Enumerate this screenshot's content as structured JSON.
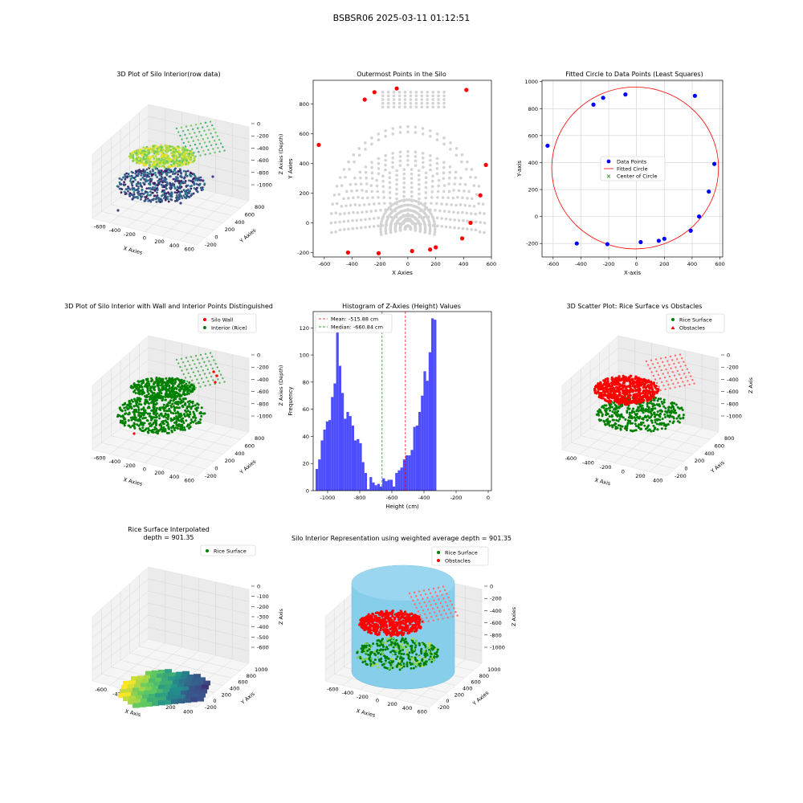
{
  "suptitle": "BSBSR06 2025-03-11 01:12:51",
  "colors": {
    "point_gray": "#d3d3d3",
    "red": "#ff0000",
    "blue": "#0000ff",
    "green": "#008000",
    "hist_blue": "#4d4dff",
    "sky": "#87ceeb",
    "pane": "#f2f2f2",
    "grid": "#d0d0d0"
  },
  "chart_data": [
    {
      "id": "p1",
      "type": "scatter3d",
      "title": "3D Plot of Silo Interior(row data)",
      "xlabel": "X Axies",
      "ylabel": "Y Axies",
      "zlabel": "Z Axies (Depth)",
      "xticks": [
        "-600",
        "-400",
        "-200",
        "0",
        "200",
        "400",
        "600"
      ],
      "yticks": [
        "-200",
        "0",
        "200",
        "400",
        "600",
        "800"
      ],
      "zticks": [
        "0",
        "-200",
        "-400",
        "-600",
        "-800",
        "-1000"
      ],
      "colormap": "viridis"
    },
    {
      "id": "p2",
      "type": "scatter",
      "title": "Outermost Points in the Silo",
      "xlabel": "X Axies",
      "ylabel": "Y Axies",
      "xlim": [
        -680,
        600
      ],
      "ylim": [
        -230,
        960
      ],
      "xticks": [
        -600,
        -400,
        -200,
        0,
        200,
        400,
        600
      ],
      "yticks": [
        -200,
        0,
        200,
        400,
        600,
        800
      ],
      "outer_points": [
        [
          -640,
          525
        ],
        [
          -430,
          -200
        ],
        [
          -310,
          830
        ],
        [
          -240,
          880
        ],
        [
          -210,
          -205
        ],
        [
          -80,
          905
        ],
        [
          30,
          -190
        ],
        [
          160,
          -180
        ],
        [
          200,
          -165
        ],
        [
          390,
          -105
        ],
        [
          420,
          895
        ],
        [
          450,
          0
        ],
        [
          520,
          185
        ],
        [
          560,
          390
        ]
      ],
      "outer_color": "#ff0000",
      "inner_color": "#d3d3d3"
    },
    {
      "id": "p3",
      "type": "scatter+circle",
      "title": "Fitted Circle to Data Points (Least Squares)",
      "xlabel": "X-axis",
      "ylabel": "Y-axis",
      "xlim": [
        -680,
        620
      ],
      "ylim": [
        -300,
        1010
      ],
      "xticks": [
        -600,
        -400,
        -200,
        0,
        200,
        400,
        600
      ],
      "yticks": [
        -200,
        0,
        200,
        400,
        600,
        800,
        1000
      ],
      "points": [
        [
          -640,
          525
        ],
        [
          -430,
          -200
        ],
        [
          -310,
          830
        ],
        [
          -240,
          880
        ],
        [
          -210,
          -205
        ],
        [
          -80,
          905
        ],
        [
          30,
          -190
        ],
        [
          160,
          -180
        ],
        [
          200,
          -165
        ],
        [
          390,
          -105
        ],
        [
          420,
          895
        ],
        [
          450,
          0
        ],
        [
          520,
          185
        ],
        [
          560,
          390
        ]
      ],
      "circle": {
        "cx": -10,
        "cy": 360,
        "r": 600
      },
      "legend": [
        "Data Points",
        "Fitted Circle",
        "Center of Circle"
      ]
    },
    {
      "id": "p4",
      "type": "scatter3d",
      "title": "3D Plot of Silo Interior with Wall and Interior Points Distinguished",
      "xlabel": "X Axies",
      "ylabel": "Y Axies",
      "zlabel": "Z Axies (Depth)",
      "xticks": [
        "-600",
        "-400",
        "-200",
        "0",
        "200",
        "400",
        "600"
      ],
      "yticks": [
        "-200",
        "0",
        "200",
        "400",
        "600",
        "800"
      ],
      "zticks": [
        "0",
        "-200",
        "-400",
        "-600",
        "-800",
        "-1000"
      ],
      "legend": [
        "Silo Wall",
        "Interior (Rice)"
      ]
    },
    {
      "id": "p5",
      "type": "bar",
      "title": "Histogram of Z-Axies (Height) Values",
      "xlabel": "Height (cm)",
      "ylabel": "Frequency",
      "xlim": [
        -1090,
        20
      ],
      "ylim": [
        0,
        132
      ],
      "xticks": [
        -1000,
        -800,
        -600,
        -400,
        -200,
        0
      ],
      "yticks": [
        0,
        20,
        40,
        60,
        80,
        100,
        120
      ],
      "bin_start": -1075,
      "bin_width": 16,
      "values": [
        16,
        23,
        37,
        45,
        51,
        52,
        69,
        79,
        117,
        92,
        72,
        53,
        58,
        55,
        48,
        37,
        38,
        35,
        21,
        13,
        1,
        10,
        6,
        4,
        5,
        3,
        9,
        7,
        8,
        8,
        3,
        13,
        15,
        17,
        23,
        26,
        26,
        30,
        47,
        48,
        58,
        70,
        88,
        81,
        102,
        127,
        126
      ],
      "mean": -515.88,
      "median": -660.84,
      "legend": [
        "Mean: -515.88 cm",
        "Median: -660.84 cm"
      ]
    },
    {
      "id": "p6",
      "type": "scatter3d",
      "title": "3D Scatter Plot: Rice Surface vs Obstacles",
      "xlabel": "X Axis",
      "ylabel": "Y Axis",
      "zlabel": "Z Axis",
      "xticks": [
        "-600",
        "-400",
        "-200",
        "0",
        "200",
        "400"
      ],
      "yticks": [
        "-200",
        "0",
        "200",
        "400",
        "600",
        "800"
      ],
      "zticks": [
        "0",
        "-200",
        "-400",
        "-600",
        "-800",
        "-1000"
      ],
      "legend": [
        "Rice Surface",
        "Obstacles"
      ]
    },
    {
      "id": "p7",
      "type": "surface3d",
      "title": "Rice Surface Interpolated\ndepth = 901.35",
      "xlabel": "X Axis",
      "ylabel": "Y Axis",
      "zlabel": "Z Axis",
      "xticks": [
        "-600",
        "-400",
        "-200",
        "0",
        "200",
        "400"
      ],
      "yticks": [
        "-200",
        "0",
        "200",
        "400",
        "600",
        "800",
        "1000"
      ],
      "zticks": [
        "0",
        "-100",
        "-200",
        "-300",
        "-400",
        "-500",
        "-600"
      ],
      "legend": [
        "Rice Surface"
      ]
    },
    {
      "id": "p8",
      "type": "scatter3d+cylinder",
      "title": "Silo Interior Representation using weighted average depth = 901.35",
      "xlabel": "X Axies",
      "ylabel": "Y Axies",
      "zlabel": "Z Axies",
      "xticks": [
        "-600",
        "-400",
        "-200",
        "0",
        "200",
        "400",
        "600"
      ],
      "yticks": [
        "-200",
        "0",
        "200",
        "400",
        "600",
        "800",
        "1000"
      ],
      "zticks": [
        "0",
        "-200",
        "-400",
        "-600",
        "-800",
        "-1000"
      ],
      "legend": [
        "Rice Surface",
        "Obstacles"
      ]
    }
  ]
}
